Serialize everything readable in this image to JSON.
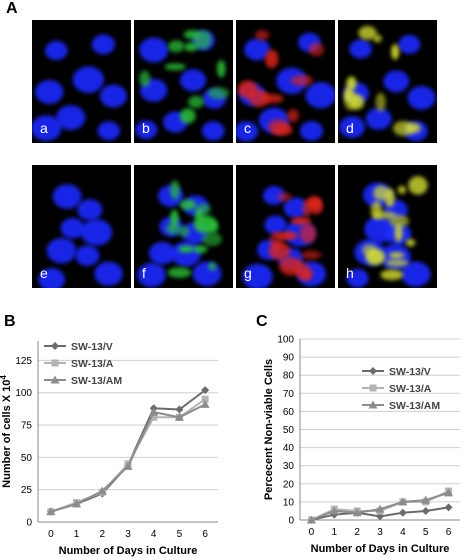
{
  "panels": {
    "A": "A",
    "B": "B",
    "C": "C"
  },
  "micrographs": [
    {
      "label": "a",
      "stain": "nuclei-only"
    },
    {
      "label": "b",
      "stain": "green"
    },
    {
      "label": "c",
      "stain": "red"
    },
    {
      "label": "d",
      "stain": "merge"
    },
    {
      "label": "e",
      "stain": "nuclei-only"
    },
    {
      "label": "f",
      "stain": "green"
    },
    {
      "label": "g",
      "stain": "red"
    },
    {
      "label": "h",
      "stain": "merge"
    }
  ],
  "colors": {
    "nuclei": "#1f2cff",
    "green": "#2fc93a",
    "red": "#e0281e",
    "yellow": "#d8e036",
    "series_v": "#6b6b6b",
    "series_a": "#b3b3b3",
    "series_am": "#8c8c8c"
  },
  "chart_data": [
    {
      "type": "line",
      "panel": "B",
      "xlabel": "Number of Days in Culture",
      "ylabel": "Number of cells X 10",
      "ylabel_superscript": "4",
      "x": [
        0,
        1,
        2,
        3,
        4,
        5,
        6
      ],
      "ylim": [
        0,
        140
      ],
      "yticks": [
        0,
        25,
        50,
        75,
        100,
        125
      ],
      "grid": true,
      "legend_position": "top-left",
      "series": [
        {
          "name": "SW-13/V",
          "marker": "diamond",
          "color": "#6b6b6b",
          "values": [
            8,
            14,
            22,
            44,
            88,
            87,
            102
          ]
        },
        {
          "name": "SW-13/A",
          "marker": "square",
          "color": "#b3b3b3",
          "values": [
            8,
            15,
            23,
            45,
            81,
            81,
            95
          ]
        },
        {
          "name": "SW-13/AM",
          "marker": "triangle",
          "color": "#8c8c8c",
          "values": [
            8,
            14,
            24,
            43,
            85,
            81,
            91
          ]
        }
      ]
    },
    {
      "type": "line",
      "panel": "C",
      "xlabel": "Number of Days in Culture",
      "ylabel": "Percecent Non-viable Cells",
      "x": [
        0,
        1,
        2,
        3,
        4,
        5,
        6
      ],
      "ylim": [
        0,
        100
      ],
      "yticks": [
        0,
        10,
        20,
        30,
        40,
        50,
        60,
        70,
        80,
        90,
        100
      ],
      "grid": true,
      "legend_position": "top-right",
      "series": [
        {
          "name": "SW-13/V",
          "marker": "diamond",
          "color": "#6b6b6b",
          "values": [
            0,
            3,
            4,
            2,
            4,
            5,
            7
          ]
        },
        {
          "name": "SW-13/A",
          "marker": "square",
          "color": "#b3b3b3",
          "values": [
            0,
            6,
            5,
            5,
            10,
            10,
            16
          ]
        },
        {
          "name": "SW-13/AM",
          "marker": "triangle",
          "color": "#8c8c8c",
          "values": [
            0,
            5,
            4,
            6,
            10,
            11,
            15
          ]
        }
      ]
    }
  ]
}
